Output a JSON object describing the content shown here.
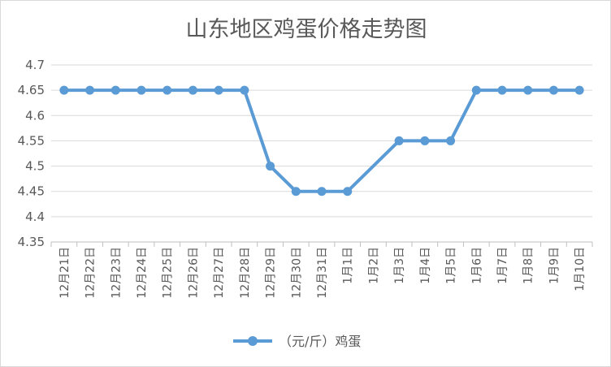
{
  "chart_data": {
    "type": "line",
    "title": "山东地区鸡蛋价格走势图",
    "categories": [
      "12月21日",
      "12月22日",
      "12月23日",
      "12月24日",
      "12月25日",
      "12月26日",
      "12月27日",
      "12月28日",
      "12月29日",
      "12月30日",
      "12月31日",
      "1月1日",
      "1月2日",
      "1月3日",
      "1月4日",
      "1月5日",
      "1月6日",
      "1月7日",
      "1月8日",
      "1月9日",
      "1月10日"
    ],
    "series": [
      {
        "name": "（元/斤）鸡蛋",
        "values": [
          4.65,
          4.65,
          4.65,
          4.65,
          4.65,
          4.65,
          4.65,
          4.65,
          4.5,
          4.45,
          4.45,
          4.45,
          null,
          4.55,
          4.55,
          4.55,
          4.65,
          4.65,
          4.65,
          4.65,
          4.65
        ],
        "color": "#5b9bd5"
      }
    ],
    "yticks": [
      "4.35",
      "4.4",
      "4.45",
      "4.5",
      "4.55",
      "4.6",
      "4.65",
      "4.7"
    ],
    "ylim": [
      4.35,
      4.7
    ],
    "grid": true,
    "legend": "bottom"
  }
}
